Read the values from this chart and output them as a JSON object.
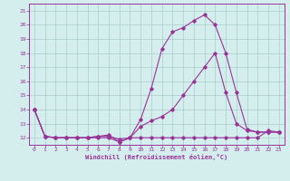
{
  "xlabel": "Windchill (Refroidissement éolien,°C)",
  "bg_color": "#d4eeed",
  "line_color": "#993399",
  "grid_color": "#aacccc",
  "xlim": [
    -0.5,
    23.5
  ],
  "ylim": [
    11.5,
    21.5
  ],
  "xticks": [
    0,
    1,
    2,
    3,
    4,
    5,
    6,
    7,
    8,
    9,
    10,
    11,
    12,
    13,
    14,
    15,
    16,
    17,
    18,
    19,
    20,
    21,
    22,
    23
  ],
  "yticks": [
    12,
    13,
    14,
    15,
    16,
    17,
    18,
    19,
    20,
    21
  ],
  "line1_x": [
    0,
    1,
    2,
    3,
    4,
    5,
    6,
    7,
    8,
    9,
    10,
    11,
    12,
    13,
    14,
    15,
    16,
    17,
    18,
    19,
    20,
    21,
    22,
    23
  ],
  "line1_y": [
    14.0,
    12.1,
    12.0,
    12.0,
    12.0,
    12.0,
    12.1,
    12.2,
    11.7,
    12.0,
    13.3,
    15.5,
    18.3,
    19.5,
    19.8,
    20.3,
    20.7,
    20.0,
    18.0,
    15.2,
    12.6,
    12.4,
    12.4,
    12.4
  ],
  "line2_x": [
    0,
    1,
    2,
    3,
    4,
    5,
    6,
    7,
    8,
    9,
    10,
    11,
    12,
    13,
    14,
    15,
    16,
    17,
    18,
    19,
    20,
    21,
    22,
    23
  ],
  "line2_y": [
    14.0,
    12.1,
    12.0,
    12.0,
    12.0,
    12.0,
    12.1,
    12.1,
    11.9,
    12.0,
    12.8,
    13.2,
    13.5,
    14.0,
    15.0,
    16.0,
    17.0,
    18.0,
    15.2,
    13.0,
    12.5,
    12.4,
    12.4,
    12.4
  ],
  "line3_x": [
    0,
    1,
    2,
    3,
    4,
    5,
    6,
    7,
    8,
    9,
    10,
    11,
    12,
    13,
    14,
    15,
    16,
    17,
    18,
    19,
    20,
    21,
    22,
    23
  ],
  "line3_y": [
    14.0,
    12.1,
    12.0,
    12.0,
    12.0,
    12.0,
    12.0,
    12.0,
    11.7,
    12.0,
    12.0,
    12.0,
    12.0,
    12.0,
    12.0,
    12.0,
    12.0,
    12.0,
    12.0,
    12.0,
    12.0,
    12.0,
    12.5,
    12.4
  ]
}
